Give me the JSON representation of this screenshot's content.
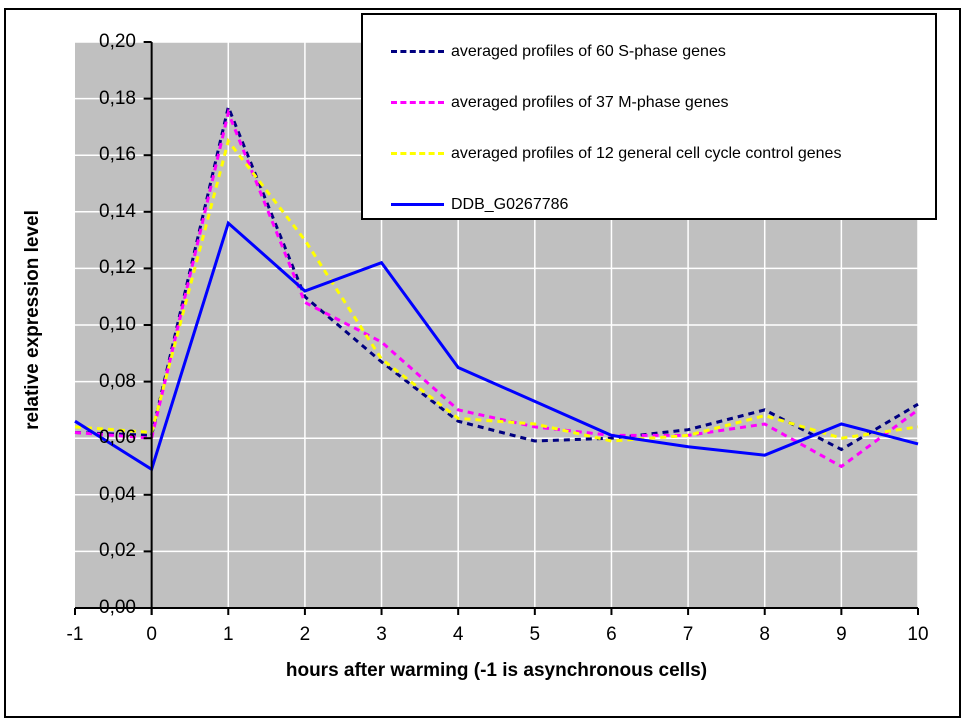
{
  "chart_data": {
    "type": "line",
    "title": "",
    "xlabel": "hours after warming (-1 is asynchronous cells)",
    "ylabel": "relative expression level",
    "x": [
      -1,
      0,
      1,
      2,
      3,
      4,
      5,
      6,
      7,
      8,
      9,
      10
    ],
    "x_tick_labels": [
      "-1",
      "0",
      "1",
      "2",
      "3",
      "4",
      "5",
      "6",
      "7",
      "8",
      "9",
      "10"
    ],
    "y_ticks": [
      0.0,
      0.02,
      0.04,
      0.06,
      0.08,
      0.1,
      0.12,
      0.14,
      0.16,
      0.18,
      0.2
    ],
    "y_tick_labels": [
      "0,00",
      "0,02",
      "0,04",
      "0,06",
      "0,08",
      "0,10",
      "0,12",
      "0,14",
      "0,16",
      "0,18",
      "0,20"
    ],
    "xlim": [
      -1,
      10
    ],
    "ylim": [
      0,
      0.2
    ],
    "grid": true,
    "decimal_separator": ",",
    "legend_position": "top-right-overlay",
    "colors": {
      "plot_bg": "#c0c0c0",
      "gridline": "#ffffff",
      "axis": "#000000",
      "frame": "#000000",
      "legend_bg": "#ffffff"
    },
    "series": [
      {
        "name": "averaged profiles of 60 S-phase genes",
        "color": "#000080",
        "style": "dashed",
        "values": [
          0.062,
          0.061,
          0.177,
          0.11,
          0.087,
          0.066,
          0.059,
          0.06,
          0.063,
          0.07,
          0.056,
          0.072
        ]
      },
      {
        "name": "averaged profiles of 37 M-phase genes",
        "color": "#ff00ff",
        "style": "dashed",
        "values": [
          0.062,
          0.06,
          0.175,
          0.108,
          0.094,
          0.07,
          0.064,
          0.061,
          0.061,
          0.065,
          0.05,
          0.07
        ]
      },
      {
        "name": "averaged profiles of 12 general cell cycle control genes",
        "color": "#ffff00",
        "style": "dashed",
        "values": [
          0.064,
          0.062,
          0.165,
          0.13,
          0.088,
          0.067,
          0.065,
          0.059,
          0.061,
          0.068,
          0.06,
          0.064
        ]
      },
      {
        "name": "DDB_G0267786",
        "color": "#0000ff",
        "style": "solid",
        "values": [
          0.066,
          0.049,
          0.136,
          0.112,
          0.122,
          0.085,
          0.073,
          0.061,
          0.057,
          0.054,
          0.065,
          0.058
        ]
      }
    ]
  }
}
